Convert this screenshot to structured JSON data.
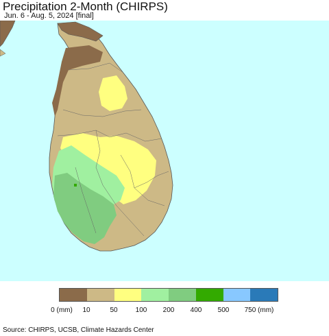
{
  "header": {
    "title": "Precipitation 2-Month (CHIRPS)",
    "subtitle": "Jun. 6 - Aug. 5, 2024 [final]"
  },
  "map": {
    "ocean_color": "#ccffff",
    "border_color": "#555555"
  },
  "legend": {
    "labels": [
      "0 (mm)",
      "10",
      "50",
      "100",
      "200",
      "400",
      "500",
      "750 (mm)"
    ],
    "colors": [
      "#8b6b4a",
      "#cdb986",
      "#ffff80",
      "#a0f0a0",
      "#80cc80",
      "#33aa00",
      "#88c8ff",
      "#2a7ab8"
    ]
  },
  "footer": {
    "source": "Source: CHIRPS, UCSB, Climate Hazards Center"
  }
}
